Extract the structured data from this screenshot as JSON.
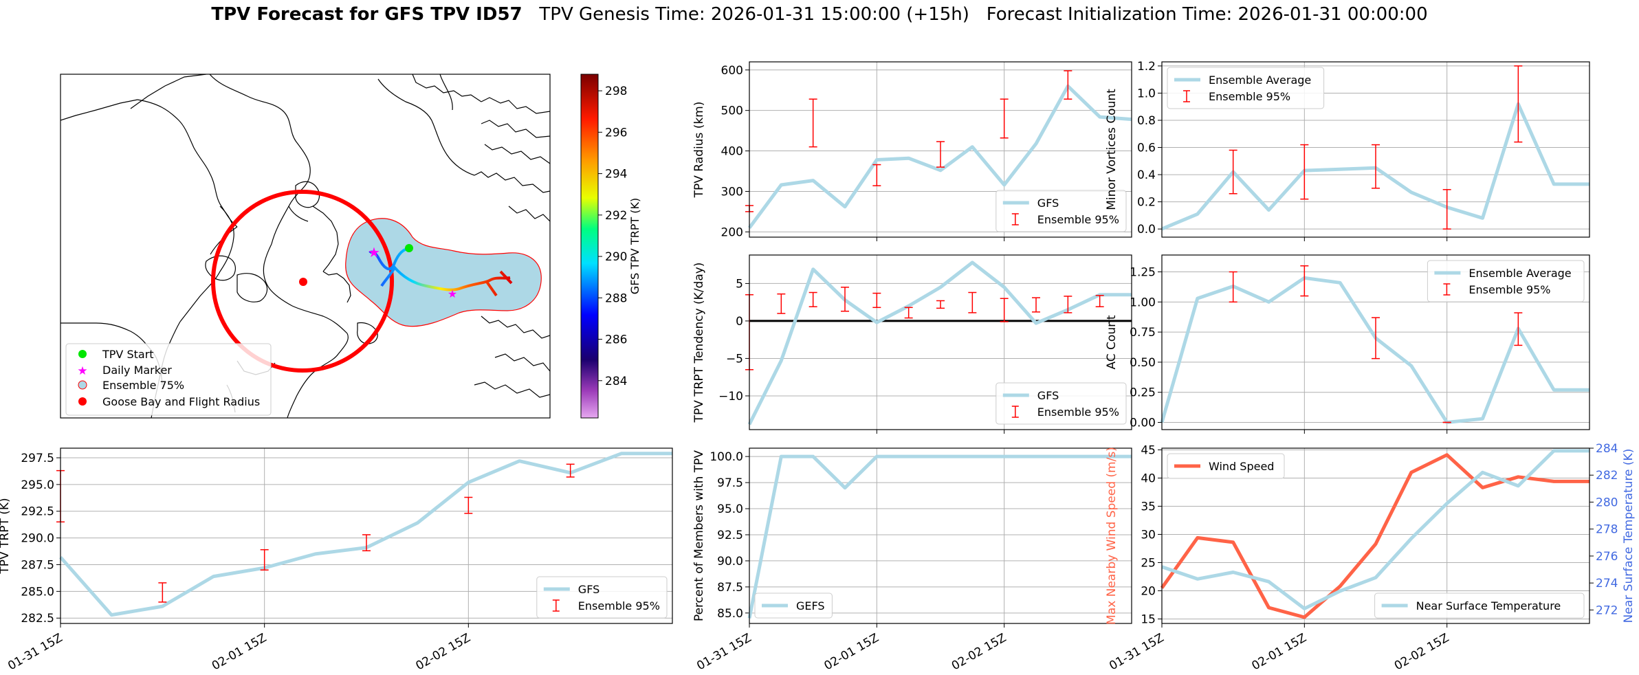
{
  "title": {
    "bold": "TPV Forecast for GFS TPV ID57",
    "genesis": "TPV Genesis Time: 2026-01-31 15:00:00 (+15h)",
    "init": "Forecast Initialization Time: 2026-01-31 00:00:00"
  },
  "colors": {
    "gfs": "#add8e6",
    "ens": "#ff0000",
    "wind": "#ff6347",
    "temp": "#4169e1",
    "zero": "#000000"
  },
  "map": {
    "legend": [
      "TPV Start",
      "Daily Marker",
      "Ensemble 75%",
      "Goose Bay and Flight Radius"
    ],
    "colorbar_label": "GFS TPV TRPT (K)",
    "colorbar_ticks": [
      "284",
      "286",
      "288",
      "290",
      "292",
      "294",
      "296",
      "298"
    ]
  },
  "chart_data": [
    {
      "id": "radius",
      "type": "line",
      "ylabel": "TPV Radius (km)",
      "ylim": [
        187,
        620
      ],
      "yticks": [
        200,
        300,
        400,
        500,
        600
      ],
      "ytick_labels": [
        "200",
        "300",
        "400",
        "500",
        "600"
      ],
      "xlim": [
        0,
        12
      ],
      "xtick_pos": [
        4,
        8
      ],
      "xtick_labels": [],
      "zero_line": false,
      "series": [
        {
          "name": "GFS",
          "x": [
            0,
            1,
            2,
            3,
            4,
            5,
            6,
            7,
            8,
            9,
            10,
            11,
            12
          ],
          "values": [
            210,
            316,
            327,
            262,
            378,
            382,
            352,
            410,
            316,
            418,
            560,
            484,
            478
          ]
        }
      ],
      "errorbars": {
        "name": "Ensemble 95%",
        "items": [
          {
            "x": 0,
            "lo": 250,
            "hi": 265
          },
          {
            "x": 2,
            "lo": 410,
            "hi": 528
          },
          {
            "x": 4,
            "lo": 314,
            "hi": 366
          },
          {
            "x": 6,
            "lo": 360,
            "hi": 423
          },
          {
            "x": 8,
            "lo": 432,
            "hi": 528
          },
          {
            "x": 10,
            "lo": 528,
            "hi": 598
          }
        ]
      },
      "legend": {
        "position": "lower right",
        "entries": [
          "GFS",
          "Ensemble 95%"
        ]
      }
    },
    {
      "id": "minor",
      "type": "line",
      "ylabel": "Minor Vortices Count",
      "ylim": [
        -0.06,
        1.23
      ],
      "yticks": [
        0,
        0.2,
        0.4,
        0.6,
        0.8,
        1.0,
        1.2
      ],
      "ytick_labels": [
        "0.0",
        "0.2",
        "0.4",
        "0.6",
        "0.8",
        "1.0",
        "1.2"
      ],
      "xlim": [
        0,
        12
      ],
      "xtick_pos": [
        4,
        8
      ],
      "xtick_labels": [],
      "zero_line": false,
      "series": [
        {
          "name": "Ensemble Average",
          "x": [
            0,
            1,
            2,
            3,
            4,
            5,
            6,
            7,
            8,
            9,
            10,
            11,
            12
          ],
          "values": [
            0,
            0.11,
            0.42,
            0.14,
            0.43,
            0.44,
            0.45,
            0.27,
            0.16,
            0.08,
            0.92,
            0.33,
            0.33
          ]
        }
      ],
      "errorbars": {
        "name": "Ensemble 95%",
        "items": [
          {
            "x": 2,
            "lo": 0.26,
            "hi": 0.58
          },
          {
            "x": 4,
            "lo": 0.22,
            "hi": 0.62
          },
          {
            "x": 6,
            "lo": 0.3,
            "hi": 0.62
          },
          {
            "x": 8,
            "lo": 0,
            "hi": 0.29
          },
          {
            "x": 10,
            "lo": 0.64,
            "hi": 1.2
          }
        ]
      },
      "legend": {
        "position": "upper left",
        "entries": [
          "Ensemble Average",
          "Ensemble 95%"
        ]
      }
    },
    {
      "id": "tendency",
      "type": "line",
      "ylabel": "TPV TRPT Tendency (K/day)",
      "ylim": [
        -14.5,
        8.8
      ],
      "yticks": [
        -10,
        -5,
        0,
        5
      ],
      "ytick_labels": [
        "−10",
        "−5",
        "0",
        "5"
      ],
      "xlim": [
        0,
        12
      ],
      "xtick_pos": [
        4,
        8
      ],
      "xtick_labels": [],
      "zero_line": true,
      "series": [
        {
          "name": "GFS",
          "x": [
            0,
            1,
            2,
            3,
            4,
            5,
            6,
            7,
            8,
            9,
            10,
            11,
            12
          ],
          "values": [
            -13.8,
            -5.3,
            6.9,
            2.8,
            -0.2,
            2,
            4.5,
            7.8,
            4.5,
            -0.3,
            1.5,
            3.5,
            3.5
          ]
        }
      ],
      "errorbars": {
        "name": "Ensemble 95%",
        "items": [
          {
            "x": 0,
            "lo": -6.5,
            "hi": 3.5
          },
          {
            "x": 1,
            "lo": 1,
            "hi": 3.6
          },
          {
            "x": 2,
            "lo": 1.9,
            "hi": 3.8
          },
          {
            "x": 3,
            "lo": 1.3,
            "hi": 4.5
          },
          {
            "x": 4,
            "lo": 1.8,
            "hi": 3.7
          },
          {
            "x": 5,
            "lo": 0.4,
            "hi": 1.8
          },
          {
            "x": 6,
            "lo": 1.7,
            "hi": 2.7
          },
          {
            "x": 7,
            "lo": 1.1,
            "hi": 3.8
          },
          {
            "x": 8,
            "lo": -0.1,
            "hi": 3
          },
          {
            "x": 9,
            "lo": 1.2,
            "hi": 3.1
          },
          {
            "x": 10,
            "lo": 1.1,
            "hi": 3.3
          },
          {
            "x": 11,
            "lo": 1.9,
            "hi": 3.4
          }
        ]
      },
      "legend": {
        "position": "lower right",
        "entries": [
          "GFS",
          "Ensemble 95%"
        ]
      }
    },
    {
      "id": "ac",
      "type": "line",
      "ylabel": "AC Count",
      "ylim": [
        -0.06,
        1.39
      ],
      "yticks": [
        0,
        0.25,
        0.5,
        0.75,
        1.0,
        1.25
      ],
      "ytick_labels": [
        "0.00",
        "0.25",
        "0.50",
        "0.75",
        "1.00",
        "1.25"
      ],
      "xlim": [
        0,
        12
      ],
      "xtick_pos": [
        4,
        8
      ],
      "xtick_labels": [],
      "zero_line": false,
      "series": [
        {
          "name": "Ensemble Average",
          "x": [
            0,
            1,
            2,
            3,
            4,
            5,
            6,
            7,
            8,
            9,
            10,
            11,
            12
          ],
          "values": [
            0,
            1.03,
            1.13,
            1.0,
            1.2,
            1.16,
            0.7,
            0.47,
            0,
            0.03,
            0.78,
            0.27,
            0.27
          ]
        }
      ],
      "errorbars": {
        "name": "Ensemble 95%",
        "items": [
          {
            "x": 2,
            "lo": 1.0,
            "hi": 1.25
          },
          {
            "x": 4,
            "lo": 1.05,
            "hi": 1.3
          },
          {
            "x": 6,
            "lo": 0.53,
            "hi": 0.87
          },
          {
            "x": 8,
            "lo": 0,
            "hi": 0
          },
          {
            "x": 10,
            "lo": 0.64,
            "hi": 0.91
          }
        ]
      },
      "legend": {
        "position": "upper right",
        "entries": [
          "Ensemble Average",
          "Ensemble 95%"
        ]
      }
    },
    {
      "id": "trpt",
      "type": "line",
      "ylabel": "TPV TRPT (K)",
      "ylim": [
        282,
        298.4
      ],
      "yticks": [
        282.5,
        285,
        287.5,
        290,
        292.5,
        295,
        297.5
      ],
      "ytick_labels": [
        "282.5",
        "285.0",
        "287.5",
        "290.0",
        "292.5",
        "295.0",
        "297.5"
      ],
      "xlim": [
        0,
        12
      ],
      "xtick_pos": [
        0,
        4,
        8
      ],
      "xtick_labels": [
        "01-31 15Z",
        "02-01 15Z",
        "02-02 15Z"
      ],
      "zero_line": false,
      "series": [
        {
          "name": "GFS",
          "x": [
            0,
            1,
            2,
            3,
            4,
            5,
            6,
            7,
            8,
            9,
            10,
            11,
            12
          ],
          "values": [
            288.2,
            282.8,
            283.6,
            286.4,
            287.2,
            288.5,
            289.1,
            291.4,
            295.2,
            297.2,
            296.1,
            297.9,
            297.9
          ]
        }
      ],
      "errorbars": {
        "name": "Ensemble 95%",
        "items": [
          {
            "x": 0,
            "lo": 291.5,
            "hi": 296.3
          },
          {
            "x": 2,
            "lo": 284,
            "hi": 285.8
          },
          {
            "x": 4,
            "lo": 287,
            "hi": 288.9
          },
          {
            "x": 6,
            "lo": 288.8,
            "hi": 290.3
          },
          {
            "x": 8,
            "lo": 292.3,
            "hi": 293.8
          },
          {
            "x": 10,
            "lo": 295.7,
            "hi": 296.9
          }
        ]
      },
      "legend": {
        "position": "lower right",
        "entries": [
          "GFS",
          "Ensemble 95%"
        ]
      }
    },
    {
      "id": "percent",
      "type": "line",
      "ylabel": "Percent of Members with TPV",
      "ylim": [
        84,
        100.8
      ],
      "yticks": [
        85,
        87.5,
        90,
        92.5,
        95,
        97.5,
        100
      ],
      "ytick_labels": [
        "85.0",
        "87.5",
        "90.0",
        "92.5",
        "95.0",
        "97.5",
        "100.0"
      ],
      "xlim": [
        0,
        12
      ],
      "xtick_pos": [
        0,
        4,
        8
      ],
      "xtick_labels": [
        "01-31 15Z",
        "02-01 15Z",
        "02-02 15Z"
      ],
      "zero_line": false,
      "series": [
        {
          "name": "GEFS",
          "x": [
            0,
            1,
            2,
            3,
            4,
            5,
            6,
            7,
            8,
            9,
            10,
            11,
            12
          ],
          "values": [
            84.5,
            100,
            100,
            97,
            100,
            100,
            100,
            100,
            100,
            100,
            100,
            100,
            100
          ]
        }
      ],
      "errorbars": null,
      "legend": {
        "position": "lower left",
        "entries": [
          "GEFS"
        ]
      }
    },
    {
      "id": "wind",
      "type": "line",
      "ylabel": "Max Nearby Wind Speed (m/s)",
      "y2label": "Near Surface Temperature (K)",
      "ylim": [
        14.2,
        45.3
      ],
      "y2lim": [
        271,
        284
      ],
      "yticks": [
        15,
        20,
        25,
        30,
        35,
        40,
        45
      ],
      "ytick_labels": [
        "15",
        "20",
        "25",
        "30",
        "35",
        "40",
        "45"
      ],
      "y2ticks": [
        272,
        274,
        276,
        278,
        280,
        282,
        284
      ],
      "y2tick_labels": [
        "272",
        "274",
        "276",
        "278",
        "280",
        "282",
        "284"
      ],
      "xlim": [
        0,
        12
      ],
      "xtick_pos": [
        0,
        4,
        8
      ],
      "xtick_labels": [
        "01-31 15Z",
        "02-01 15Z",
        "02-02 15Z"
      ],
      "zero_line": false,
      "series": [
        {
          "name": "Wind Speed",
          "axis": "left",
          "x": [
            0,
            1,
            2,
            3,
            4,
            5,
            6,
            7,
            8,
            9,
            10,
            11,
            12
          ],
          "values": [
            20.5,
            29.4,
            28.6,
            17,
            15.3,
            20.8,
            28.3,
            41,
            44.1,
            38.3,
            40.2,
            39.4,
            39.4
          ]
        },
        {
          "name": "Near Surface Temperature",
          "axis": "right",
          "x": [
            0,
            1,
            2,
            3,
            4,
            5,
            6,
            7,
            8,
            9,
            10,
            11,
            12
          ],
          "values": [
            275.2,
            274.3,
            274.8,
            274.1,
            272.1,
            273.4,
            274.4,
            277.3,
            279.9,
            282.2,
            281.2,
            283.8,
            283.8
          ]
        }
      ],
      "errorbars": null,
      "legend": {
        "position": "split",
        "entries": [
          "Wind Speed",
          "Near Surface Temperature"
        ]
      }
    }
  ]
}
